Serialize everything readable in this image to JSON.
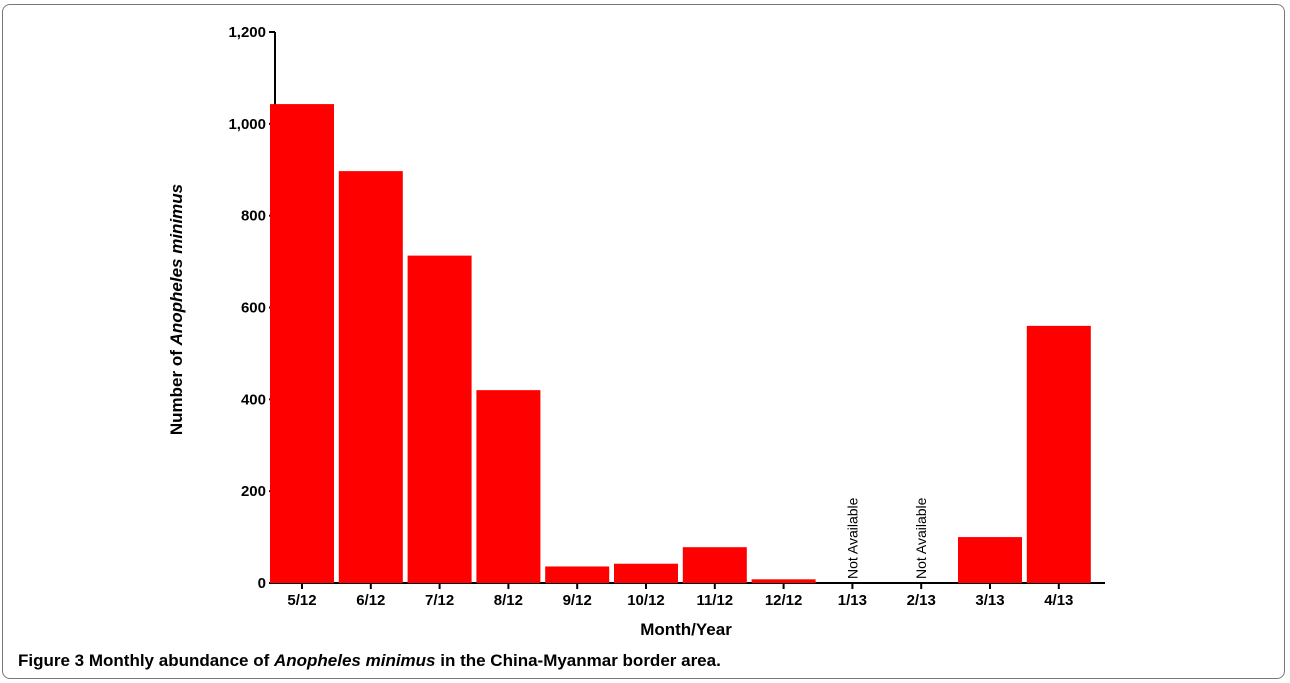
{
  "caption": {
    "label": "Figure 3",
    "text_before": "Monthly abundance of",
    "species": "Anopheles minimus",
    "text_after": "in the China-Myanmar border area."
  },
  "chart_data": {
    "type": "bar",
    "categories": [
      "5/12",
      "6/12",
      "7/12",
      "8/12",
      "9/12",
      "10/12",
      "11/12",
      "12/12",
      "1/13",
      "2/13",
      "3/13",
      "4/13"
    ],
    "values": [
      1043,
      897,
      713,
      420,
      36,
      42,
      78,
      8,
      null,
      null,
      100,
      560
    ],
    "annotations": [
      {
        "category": "1/13",
        "text": "Not Available"
      },
      {
        "category": "2/13",
        "text": "Not Available"
      }
    ],
    "xlabel": "Month/Year",
    "ylabel_prefix": "Number of",
    "ylabel_species": "Anopheles minimus",
    "ylim": [
      0,
      1200
    ],
    "yticks": [
      0,
      200,
      400,
      600,
      800,
      1000,
      1200
    ],
    "ytick_labels": [
      "0",
      "200",
      "400",
      "600",
      "800",
      "1,000",
      "1,200"
    ],
    "bar_color": "#ff0000",
    "grid": false,
    "legend": "none"
  }
}
